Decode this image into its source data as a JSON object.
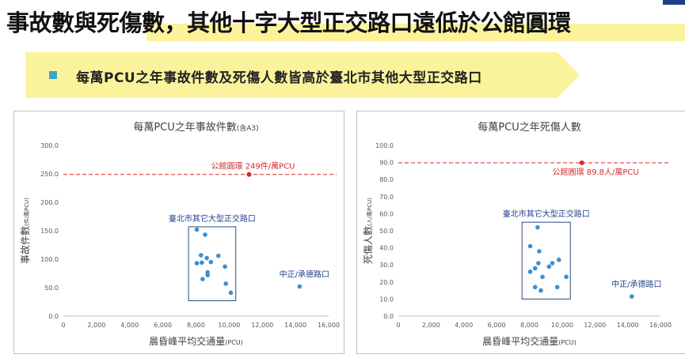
{
  "header": {
    "title": "事故數與死傷數，其他十字大型正交路口遠低於公館圓環",
    "banner_text": "每萬PCU之年事故件數及死傷人數皆高於臺北市其他大型正交路口"
  },
  "colors": {
    "highlight": "#fbf39c",
    "bullet": "#3aa6c4",
    "point": "#3a8fd0",
    "reference": "#d6282b",
    "box": "#2e4a7a",
    "annotation": "#1f3e8a"
  },
  "chart_data": [
    {
      "type": "scatter",
      "title": "每萬PCU之年事故件數",
      "title_suffix": "(含A3)",
      "xlabel": "晨昏峰平均交通量",
      "xlabel_unit": "(PCU)",
      "ylabel": "事故件數",
      "ylabel_unit": "(件/萬PCU)",
      "xlim": [
        0,
        16000
      ],
      "ylim": [
        0,
        300
      ],
      "x_ticks": [
        0,
        2000,
        4000,
        6000,
        8000,
        10000,
        12000,
        14000,
        16000
      ],
      "x_tick_labels": [
        "0",
        "2,000",
        "4,000",
        "6,000",
        "8,000",
        "10,000",
        "12,000",
        "14,000",
        "16,000"
      ],
      "y_ticks": [
        0,
        50,
        100,
        150,
        200,
        250,
        300
      ],
      "y_tick_labels": [
        "0.0",
        "50.0",
        "100.0",
        "150.0",
        "200.0",
        "250.0",
        "300.0"
      ],
      "grid": false,
      "series": [
        {
          "points": [
            {
              "x": 8050,
              "y": 152
            },
            {
              "x": 8550,
              "y": 143
            },
            {
              "x": 8300,
              "y": 107
            },
            {
              "x": 8650,
              "y": 102
            },
            {
              "x": 9350,
              "y": 106
            },
            {
              "x": 8050,
              "y": 93
            },
            {
              "x": 8350,
              "y": 94
            },
            {
              "x": 8900,
              "y": 95
            },
            {
              "x": 8700,
              "y": 77
            },
            {
              "x": 8700,
              "y": 72
            },
            {
              "x": 9750,
              "y": 87
            },
            {
              "x": 8400,
              "y": 65
            },
            {
              "x": 9800,
              "y": 57
            },
            {
              "x": 10100,
              "y": 41
            }
          ]
        },
        {
          "points": [
            {
              "x": 14250,
              "y": 52
            }
          ]
        }
      ],
      "reference_line": {
        "y": 249.0
      },
      "highlight_point": {
        "x": 11200,
        "y": 249.0
      },
      "annotations": {
        "reference_label": "公館圓環  249件/萬PCU",
        "group_label": "臺北市其它大型正交路口",
        "outlier_label": "中正/承德路口"
      },
      "group_box": {
        "x": [
          7550,
          10400
        ],
        "y": [
          27,
          157
        ]
      }
    },
    {
      "type": "scatter",
      "title": "每萬PCU之年死傷人數",
      "title_suffix": "",
      "xlabel": "晨昏峰平均交通量",
      "xlabel_unit": "(PCU)",
      "ylabel": "死傷人數",
      "ylabel_unit": "(人/萬PCU)",
      "xlim": [
        0,
        16000
      ],
      "ylim": [
        0,
        100
      ],
      "x_ticks": [
        0,
        2000,
        4000,
        6000,
        8000,
        10000,
        12000,
        14000,
        16000
      ],
      "x_tick_labels": [
        "0",
        "2,000",
        "4,000",
        "6,000",
        "8,000",
        "10,000",
        "12,000",
        "14,000",
        "16,000"
      ],
      "y_ticks": [
        0,
        10,
        20,
        30,
        40,
        50,
        60,
        70,
        80,
        90,
        100
      ],
      "y_tick_labels": [
        "0.0",
        "10.0",
        "20.0",
        "30.0",
        "40.0",
        "50.0",
        "60.0",
        "70.0",
        "80.0",
        "90.0",
        "100.0"
      ],
      "grid": false,
      "series": [
        {
          "points": [
            {
              "x": 8500,
              "y": 52
            },
            {
              "x": 8050,
              "y": 41
            },
            {
              "x": 8600,
              "y": 38
            },
            {
              "x": 8550,
              "y": 31
            },
            {
              "x": 8350,
              "y": 28
            },
            {
              "x": 9200,
              "y": 29
            },
            {
              "x": 9400,
              "y": 31
            },
            {
              "x": 9800,
              "y": 33
            },
            {
              "x": 8050,
              "y": 26
            },
            {
              "x": 8800,
              "y": 23
            },
            {
              "x": 10250,
              "y": 23
            },
            {
              "x": 8350,
              "y": 17
            },
            {
              "x": 9700,
              "y": 17
            },
            {
              "x": 8700,
              "y": 15
            }
          ]
        },
        {
          "points": [
            {
              "x": 14250,
              "y": 11.5
            }
          ]
        }
      ],
      "reference_line": {
        "y": 89.8
      },
      "highlight_point": {
        "x": 11200,
        "y": 89.8
      },
      "annotations": {
        "reference_label": "公館圓環  89.8人/萬PCU",
        "group_label": "臺北市其它大型正交路口",
        "outlier_label": "中正/承德路口"
      },
      "group_box": {
        "x": [
          7550,
          10500
        ],
        "y": [
          10,
          55
        ]
      }
    }
  ]
}
